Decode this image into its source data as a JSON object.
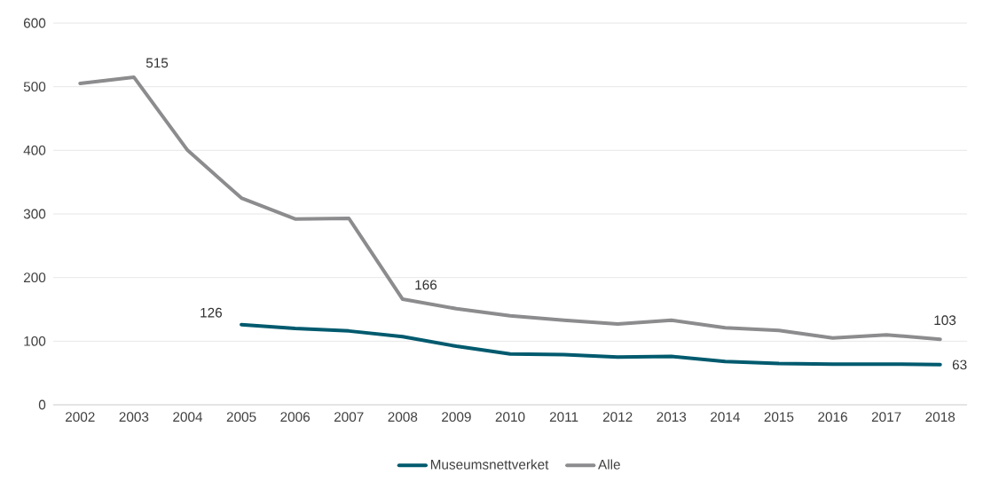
{
  "chart_data": {
    "type": "line",
    "categories": [
      "2002",
      "2003",
      "2004",
      "2005",
      "2006",
      "2007",
      "2008",
      "2009",
      "2010",
      "2011",
      "2012",
      "2013",
      "2014",
      "2015",
      "2016",
      "2017",
      "2018"
    ],
    "series": [
      {
        "name": "Museumsnettverket",
        "color": "#005a6e",
        "values": [
          null,
          null,
          null,
          126,
          120,
          116,
          107,
          92,
          80,
          79,
          75,
          76,
          68,
          65,
          64,
          64,
          63
        ],
        "value_labels": [
          null,
          null,
          null,
          "126",
          null,
          null,
          null,
          null,
          null,
          null,
          null,
          null,
          null,
          null,
          null,
          null,
          "63"
        ]
      },
      {
        "name": "Alle",
        "color": "#8c8c8e",
        "values": [
          505,
          515,
          400,
          325,
          292,
          293,
          166,
          151,
          140,
          133,
          127,
          133,
          121,
          117,
          105,
          110,
          103
        ],
        "value_labels": [
          null,
          "515",
          null,
          null,
          null,
          null,
          "166",
          null,
          null,
          null,
          null,
          null,
          null,
          null,
          null,
          null,
          "103"
        ]
      }
    ],
    "ylim": [
      0,
      600
    ],
    "yticks": [
      0,
      100,
      200,
      300,
      400,
      500,
      600
    ],
    "grid": "y",
    "legend": "bottom",
    "marker": "none",
    "line_style": "solid"
  }
}
